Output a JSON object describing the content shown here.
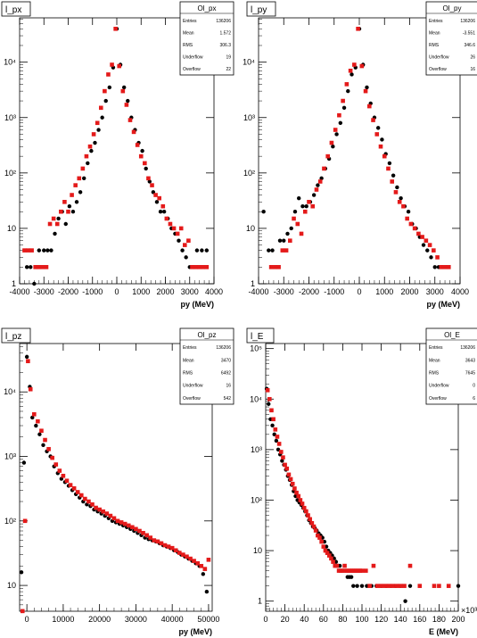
{
  "chart_data": [
    {
      "type": "scatter",
      "title": "l_px",
      "xlabel": "py (MeV)",
      "ylabel": "",
      "xlim": [
        -4000,
        4000
      ],
      "ylim_log10": [
        0,
        4.8
      ],
      "y_scale": "log",
      "xticks": [
        "-4000",
        "-3000",
        "-2000",
        "-1000",
        "0",
        "1000",
        "2000",
        "3000",
        "4000"
      ],
      "yticks": [
        "1",
        "10",
        "10²",
        "10³",
        "10⁴"
      ],
      "stats": {
        "name": "Ol_px",
        "rows": [
          {
            "label": "Entries",
            "value": "136206"
          },
          {
            "label": "Mean",
            "value": "1.572"
          },
          {
            "label": "RMS",
            "value": "306.3"
          },
          {
            "label": "Underflow",
            "value": "19"
          },
          {
            "label": "Overflow",
            "value": "22"
          }
        ]
      },
      "series": [
        {
          "color": "#000000",
          "marker": "circle",
          "x": [
            -3700,
            -3550,
            -3400,
            -3300,
            -3200,
            -3000,
            -2850,
            -2700,
            -2550,
            -2400,
            -2250,
            -2100,
            -1950,
            -1800,
            -1650,
            -1500,
            -1350,
            -1200,
            -1050,
            -900,
            -750,
            -600,
            -450,
            -300,
            -150,
            0,
            150,
            300,
            450,
            600,
            750,
            900,
            1050,
            1200,
            1350,
            1500,
            1650,
            1800,
            1950,
            2100,
            2250,
            2400,
            2550,
            2700,
            2850,
            3000,
            3150,
            3300,
            3500,
            3700
          ],
          "y": [
            2,
            2,
            1,
            2,
            4,
            4,
            4,
            4,
            8,
            15,
            20,
            12,
            25,
            20,
            30,
            45,
            80,
            150,
            250,
            350,
            600,
            1000,
            2000,
            3500,
            8000,
            40000,
            9000,
            3500,
            2000,
            1000,
            600,
            350,
            250,
            120,
            70,
            45,
            30,
            20,
            20,
            15,
            10,
            8,
            6,
            4,
            3,
            2,
            2,
            4,
            4,
            4
          ]
        },
        {
          "color": "#e41a1a",
          "marker": "square",
          "x": [
            -3800,
            -3650,
            -3500,
            -3350,
            -3200,
            -3050,
            -2900,
            -2750,
            -2600,
            -2450,
            -2300,
            -2150,
            -2000,
            -1850,
            -1700,
            -1550,
            -1400,
            -1250,
            -1100,
            -950,
            -800,
            -650,
            -500,
            -350,
            -200,
            -50,
            100,
            250,
            400,
            550,
            700,
            850,
            1000,
            1150,
            1300,
            1450,
            1600,
            1750,
            1900,
            2050,
            2200,
            2350,
            2500,
            2650,
            2800,
            2950,
            3100,
            3250,
            3400,
            3550,
            3700
          ],
          "y": [
            4,
            4,
            4,
            2,
            2,
            2,
            2,
            12,
            15,
            12,
            20,
            30,
            20,
            40,
            60,
            80,
            120,
            200,
            300,
            500,
            800,
            1500,
            3000,
            6000,
            9000,
            40000,
            8500,
            3000,
            1700,
            900,
            550,
            320,
            200,
            150,
            80,
            60,
            40,
            35,
            25,
            15,
            12,
            10,
            8,
            10,
            5,
            6,
            2,
            2,
            2,
            2,
            2
          ]
        }
      ]
    },
    {
      "type": "scatter",
      "title": "l_py",
      "xlabel": "py (MeV)",
      "ylabel": "",
      "xlim": [
        -4000,
        4000
      ],
      "ylim_log10": [
        0,
        4.8
      ],
      "y_scale": "log",
      "xticks": [
        "-4000",
        "-3000",
        "-2000",
        "-1000",
        "0",
        "1000",
        "2000",
        "3000",
        "4000"
      ],
      "yticks": [
        "1",
        "10",
        "10²",
        "10³",
        "10⁴"
      ],
      "stats": {
        "name": "Ol_py",
        "rows": [
          {
            "label": "Entries",
            "value": "136206"
          },
          {
            "label": "Mean",
            "value": "-3.551"
          },
          {
            "label": "RMS",
            "value": "346.6"
          },
          {
            "label": "Underflow",
            "value": "26"
          },
          {
            "label": "Overflow",
            "value": "16"
          }
        ]
      },
      "series": [
        {
          "color": "#000000",
          "marker": "circle",
          "x": [
            -3800,
            -3600,
            -3450,
            -3300,
            -3150,
            -3000,
            -2850,
            -2700,
            -2550,
            -2400,
            -2250,
            -2100,
            -1950,
            -1800,
            -1650,
            -1500,
            -1350,
            -1200,
            -1050,
            -900,
            -750,
            -600,
            -450,
            -300,
            -150,
            0,
            150,
            300,
            450,
            600,
            750,
            900,
            1050,
            1200,
            1350,
            1500,
            1650,
            1800,
            1950,
            2100,
            2250,
            2400,
            2550,
            2700,
            2850,
            3000,
            3150,
            3300,
            3450
          ],
          "y": [
            20,
            4,
            4,
            2,
            6,
            6,
            8,
            10,
            20,
            35,
            25,
            25,
            30,
            40,
            60,
            80,
            120,
            180,
            300,
            500,
            800,
            1500,
            3000,
            6000,
            8000,
            40000,
            9000,
            3500,
            1800,
            1000,
            650,
            400,
            220,
            150,
            90,
            55,
            35,
            25,
            20,
            12,
            10,
            7,
            5,
            4,
            3,
            2,
            2,
            2,
            2
          ]
        },
        {
          "color": "#e41a1a",
          "marker": "square",
          "x": [
            -3500,
            -3350,
            -3200,
            -3050,
            -2900,
            -2750,
            -2600,
            -2450,
            -2300,
            -2150,
            -2000,
            -1850,
            -1700,
            -1550,
            -1400,
            -1250,
            -1100,
            -950,
            -800,
            -650,
            -500,
            -350,
            -200,
            -50,
            100,
            250,
            400,
            550,
            700,
            850,
            1000,
            1150,
            1300,
            1450,
            1600,
            1750,
            1900,
            2050,
            2200,
            2350,
            2500,
            2650,
            2800,
            2950,
            3100,
            3250,
            3400,
            3550
          ],
          "y": [
            2,
            2,
            2,
            4,
            4,
            6,
            15,
            12,
            8,
            20,
            30,
            25,
            50,
            70,
            120,
            200,
            350,
            600,
            1100,
            2000,
            4000,
            7000,
            9000,
            40000,
            8500,
            3000,
            1600,
            900,
            500,
            300,
            200,
            120,
            70,
            45,
            30,
            25,
            15,
            12,
            10,
            8,
            7,
            6,
            5,
            4,
            3,
            2,
            2,
            2
          ]
        }
      ]
    },
    {
      "type": "scatter",
      "title": "l_pz",
      "xlabel": "py (MeV)",
      "ylabel": "",
      "xlim": [
        -2000,
        51000
      ],
      "ylim_log10": [
        0.6,
        4.75
      ],
      "y_scale": "log",
      "xticks": [
        "0",
        "10000",
        "20000",
        "30000",
        "40000",
        "50000"
      ],
      "yticks": [
        "10",
        "10²",
        "10³",
        "10⁴"
      ],
      "stats": {
        "name": "Ol_pz",
        "rows": [
          {
            "label": "Entries",
            "value": "136206"
          },
          {
            "label": "Mean",
            "value": "3470"
          },
          {
            "label": "RMS",
            "value": "6492"
          },
          {
            "label": "Underflow",
            "value": "16"
          },
          {
            "label": "Overflow",
            "value": "542"
          }
        ]
      },
      "series": [
        {
          "color": "#000000",
          "marker": "circle",
          "x": [
            -1500,
            -800,
            0,
            800,
            1500,
            2500,
            3500,
            4500,
            5500,
            6500,
            7500,
            8500,
            9500,
            10500,
            11500,
            12500,
            13500,
            14500,
            15500,
            16500,
            17500,
            18500,
            19500,
            20500,
            21500,
            22500,
            23500,
            24500,
            25500,
            26500,
            27500,
            28500,
            29500,
            30500,
            31500,
            32500,
            33500,
            34500,
            35500,
            36500,
            37500,
            38500,
            39500,
            40500,
            41500,
            42500,
            43500,
            44500,
            45500,
            46500,
            47500,
            48500,
            49500
          ],
          "y": [
            16,
            800,
            35000,
            12000,
            4000,
            3000,
            2200,
            1500,
            1200,
            1000,
            700,
            550,
            450,
            400,
            350,
            300,
            260,
            230,
            200,
            180,
            170,
            150,
            140,
            130,
            120,
            110,
            100,
            95,
            90,
            85,
            80,
            75,
            70,
            65,
            60,
            55,
            52,
            50,
            48,
            45,
            42,
            40,
            38,
            35,
            33,
            30,
            28,
            26,
            24,
            22,
            20,
            15,
            8
          ]
        },
        {
          "color": "#e41a1a",
          "marker": "square",
          "x": [
            -1200,
            -500,
            300,
            1000,
            2000,
            3000,
            4000,
            5000,
            6000,
            7000,
            8000,
            9000,
            10000,
            11000,
            12000,
            13000,
            14000,
            15000,
            16000,
            17000,
            18000,
            19000,
            20000,
            21000,
            22000,
            23000,
            24000,
            25000,
            26000,
            27000,
            28000,
            29000,
            30000,
            31000,
            32000,
            33000,
            34000,
            35000,
            36000,
            37000,
            38000,
            39000,
            40000,
            41000,
            42000,
            43000,
            44000,
            45000,
            46000,
            47000,
            48000,
            49000,
            50000
          ],
          "y": [
            4,
            100,
            30000,
            11000,
            4500,
            3500,
            2500,
            1800,
            1300,
            950,
            750,
            600,
            500,
            420,
            360,
            320,
            280,
            250,
            220,
            200,
            180,
            160,
            150,
            140,
            130,
            120,
            110,
            100,
            95,
            90,
            85,
            80,
            75,
            70,
            65,
            60,
            55,
            50,
            48,
            45,
            42,
            40,
            38,
            35,
            32,
            30,
            28,
            26,
            24,
            22,
            20,
            18,
            25
          ]
        }
      ]
    },
    {
      "type": "scatter",
      "title": "l_E",
      "xlabel": "E (MeV)",
      "ylabel": "",
      "x_multiplier": "×10³",
      "xlim": [
        0,
        200
      ],
      "ylim_log10": [
        -0.2,
        5.1
      ],
      "y_scale": "log",
      "xticks": [
        "0",
        "20",
        "40",
        "60",
        "80",
        "100",
        "120",
        "140",
        "160",
        "180",
        "200"
      ],
      "yticks": [
        "1",
        "10",
        "10²",
        "10³",
        "10⁴",
        "10⁵"
      ],
      "stats": {
        "name": "Ol_E",
        "rows": [
          {
            "label": "Entries",
            "value": "136206"
          },
          {
            "label": "Mean",
            "value": "3643"
          },
          {
            "label": "RMS",
            "value": "7645"
          },
          {
            "label": "Underflow",
            "value": "0"
          },
          {
            "label": "Overflow",
            "value": "6"
          }
        ]
      },
      "series": [
        {
          "color": "#000000",
          "marker": "circle",
          "x": [
            1,
            3,
            5,
            7,
            9,
            11,
            13,
            15,
            17,
            19,
            21,
            23,
            25,
            27,
            29,
            31,
            33,
            35,
            37,
            39,
            41,
            43,
            45,
            47,
            49,
            51,
            53,
            55,
            57,
            59,
            61,
            63,
            65,
            67,
            69,
            71,
            73,
            75,
            77,
            79,
            81,
            83,
            85,
            87,
            89,
            91,
            95,
            100,
            105,
            110,
            115,
            120,
            125,
            130,
            135,
            140,
            145,
            150,
            200
          ],
          "y": [
            16000,
            8000,
            4000,
            3000,
            2000,
            1500,
            1000,
            800,
            600,
            500,
            400,
            300,
            250,
            200,
            150,
            120,
            100,
            90,
            80,
            70,
            60,
            50,
            40,
            35,
            30,
            28,
            25,
            22,
            20,
            18,
            15,
            12,
            10,
            9,
            8,
            7,
            6,
            5,
            5,
            4,
            4,
            4,
            3,
            3,
            3,
            2,
            2,
            2,
            2,
            2,
            2,
            2,
            2,
            2,
            2,
            2,
            1,
            2,
            2
          ]
        },
        {
          "color": "#e41a1a",
          "marker": "square",
          "x": [
            2,
            4,
            6,
            8,
            10,
            12,
            14,
            16,
            18,
            20,
            22,
            24,
            26,
            28,
            30,
            32,
            34,
            36,
            38,
            40,
            42,
            44,
            46,
            48,
            50,
            52,
            54,
            56,
            58,
            60,
            62,
            64,
            66,
            68,
            70,
            72,
            74,
            76,
            78,
            80,
            82,
            84,
            86,
            88,
            90,
            92,
            94,
            96,
            98,
            100,
            104,
            108,
            112,
            116,
            120,
            124,
            128,
            132,
            136,
            140,
            144,
            150,
            160,
            175,
            180,
            190
          ],
          "y": [
            15000,
            10000,
            6000,
            4000,
            2500,
            1800,
            1300,
            900,
            700,
            500,
            420,
            320,
            260,
            210,
            170,
            140,
            120,
            100,
            85,
            70,
            60,
            50,
            42,
            35,
            30,
            25,
            20,
            18,
            15,
            12,
            10,
            9,
            8,
            7,
            6,
            5,
            5,
            4,
            4,
            4,
            5,
            4,
            4,
            4,
            4,
            4,
            4,
            4,
            4,
            4,
            4,
            2,
            5,
            2,
            2,
            2,
            2,
            2,
            2,
            2,
            2,
            5,
            2,
            2,
            2,
            2
          ]
        }
      ]
    }
  ]
}
